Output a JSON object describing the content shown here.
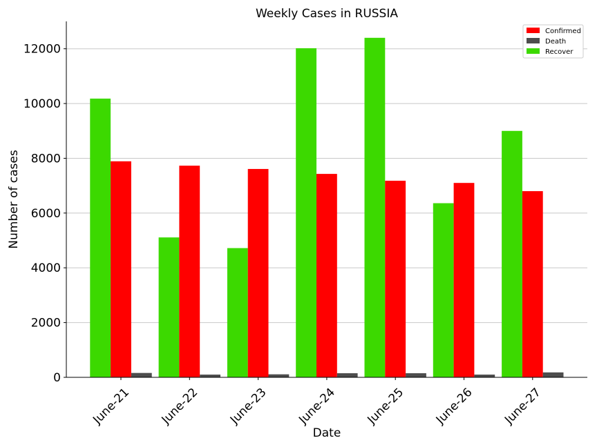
{
  "chart_data": {
    "type": "bar",
    "title": "Weekly Cases in RUSSIA",
    "xlabel": "Date",
    "ylabel": "Number of cases",
    "categories": [
      "June-21",
      "June-22",
      "June-23",
      "June-24",
      "June-25",
      "June-26",
      "June-27"
    ],
    "series": [
      {
        "name": "Recover",
        "color": "#3cd900",
        "values": [
          10180,
          5110,
          4720,
          12020,
          12400,
          6360,
          9000
        ]
      },
      {
        "name": "Confirmed",
        "color": "#ff0000",
        "values": [
          7890,
          7730,
          7610,
          7430,
          7180,
          7100,
          6800
        ]
      },
      {
        "name": "Death",
        "color": "#4d4d4d",
        "values": [
          160,
          100,
          110,
          150,
          150,
          100,
          180
        ]
      }
    ],
    "legend_order": [
      "Confirmed",
      "Death",
      "Recover"
    ],
    "legend_position": "top-right",
    "ylim": [
      0,
      13000
    ],
    "yticks": [
      0,
      2000,
      4000,
      6000,
      8000,
      10000,
      12000
    ],
    "grid": "y"
  }
}
